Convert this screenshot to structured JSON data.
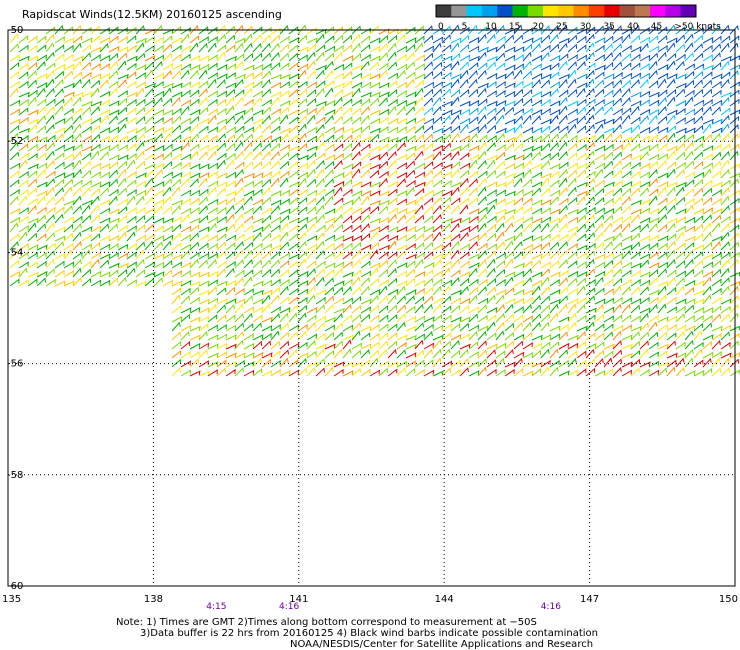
{
  "title": "Rapidscat Winds(12.5KM) 20160125 ascending",
  "colorbar": {
    "colors": [
      "#3c3c3c",
      "#969696",
      "#00c8ff",
      "#00a0f0",
      "#0050c8",
      "#00b400",
      "#78dc00",
      "#ffe600",
      "#ffc800",
      "#ff8c00",
      "#ff3c00",
      "#e60000",
      "#a0503c",
      "#be7850",
      "#ff00ff",
      "#b400e6",
      "#6400b4"
    ],
    "labels": [
      {
        "text": "0",
        "slot": 1
      },
      {
        "text": "5",
        "slot": 2
      },
      {
        "text": "10",
        "slot": 3
      },
      {
        "text": "15",
        "slot": 4
      },
      {
        "text": "20",
        "slot": 5
      },
      {
        "text": "25",
        "slot": 6
      },
      {
        "text": "30",
        "slot": 7
      },
      {
        "text": "35",
        "slot": 8
      },
      {
        "text": "40",
        "slot": 9
      },
      {
        "text": "45",
        "slot": 10
      },
      {
        "text": ">50 knots",
        "slot": 11
      }
    ]
  },
  "map": {
    "lon_range": [
      135,
      150
    ],
    "lat_range": [
      -60,
      -50
    ],
    "lon_ticks": [
      "135",
      "138",
      "141",
      "144",
      "147",
      "150"
    ],
    "lat_ticks": [
      "-50",
      "-52",
      "-54",
      "-56",
      "-58",
      "-60"
    ],
    "grid": "dotted",
    "wind_barb_speed_colors": [
      "#00b400",
      "#78dc00",
      "#ffe600",
      "#ffc800",
      "#ff8c00",
      "#e60000",
      "#0050c8",
      "#00a0f0",
      "#00c8ff"
    ]
  },
  "times": [
    {
      "text": "4:15",
      "lon": 139.3
    },
    {
      "text": "4:16",
      "lon": 140.8
    },
    {
      "text": "4:16",
      "lon": 146.2
    }
  ],
  "time_color": "#6a00a8",
  "notes": [
    "Note: 1) Times are GMT 2)Times along bottom correspond to measurement at −50S",
    "3)Data buffer is 22 hrs from 20160125 4) Black wind barbs indicate possible contamination",
    "NOAA/NESDIS/Center for Satellite Applications and Research"
  ]
}
